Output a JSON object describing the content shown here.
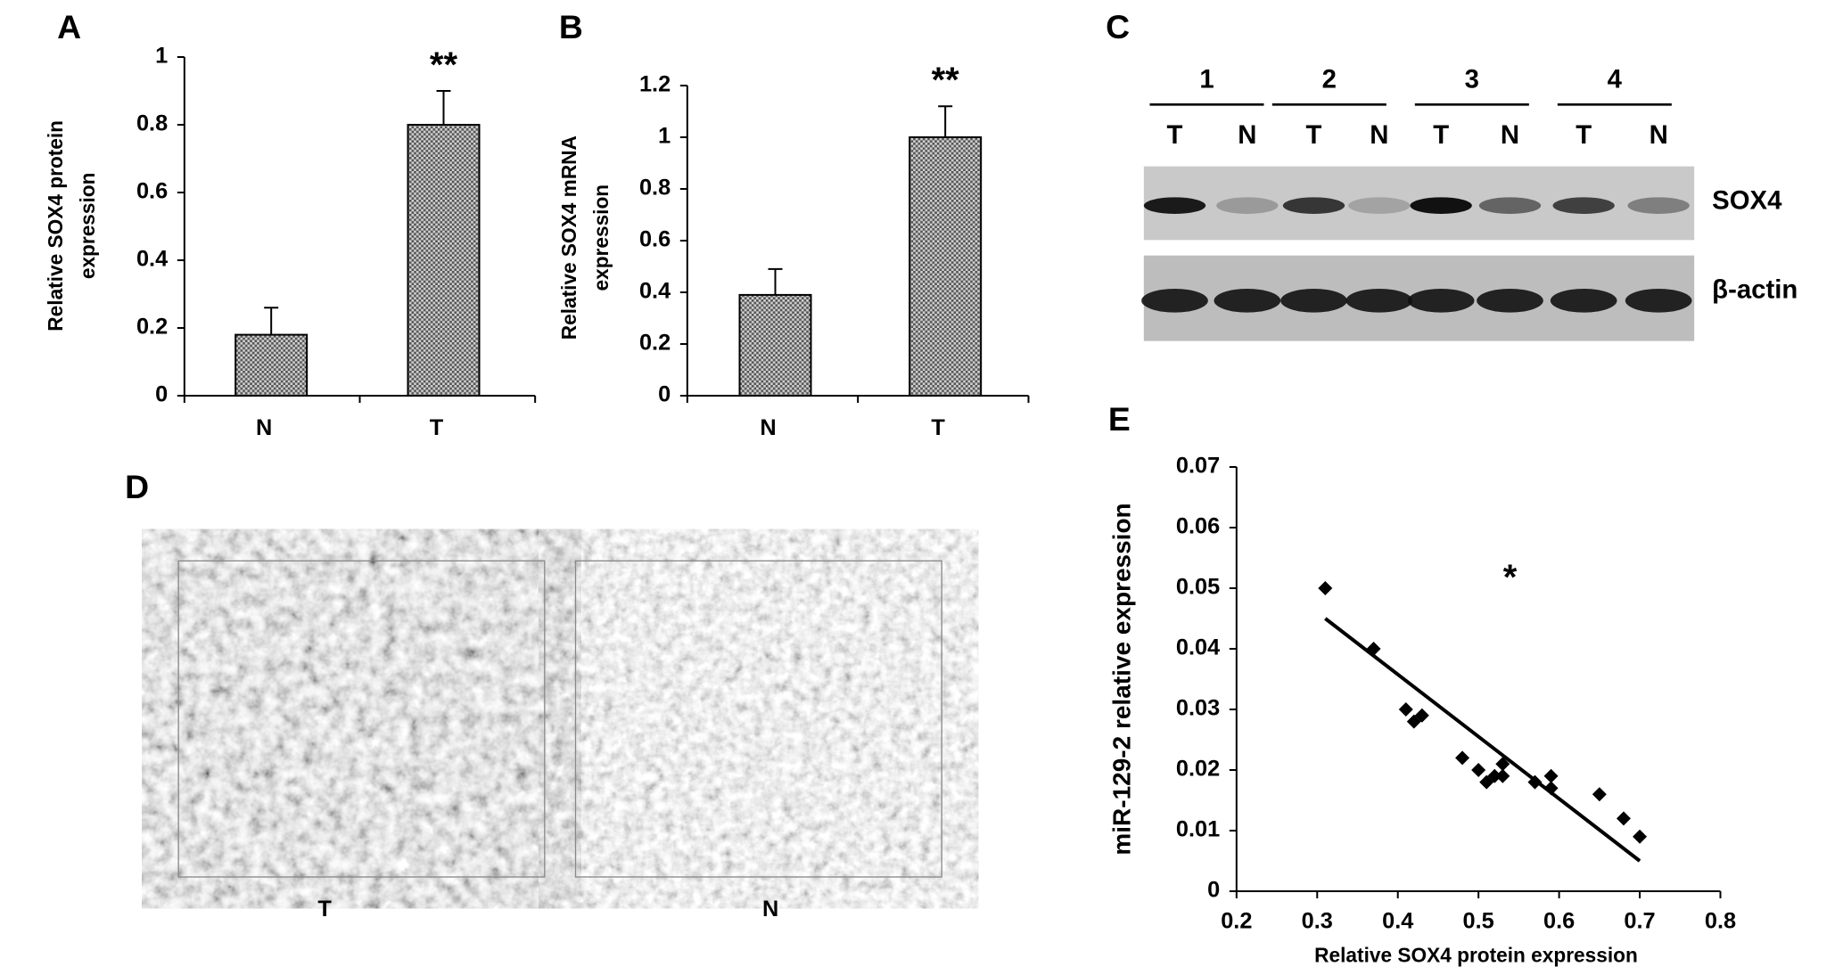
{
  "chart_data": [
    {
      "type": "bar",
      "panel": "A",
      "ylabel": [
        "Relative SOX4 protein",
        "expression"
      ],
      "categories": [
        "N",
        "T"
      ],
      "values": [
        0.18,
        0.8
      ],
      "errors": [
        0.08,
        0.1
      ],
      "annotations": [
        null,
        "**"
      ],
      "color": "#9a9a9a",
      "ylim": [
        0,
        1
      ],
      "yticks": [
        0,
        0.2,
        0.4,
        0.6,
        0.8,
        1
      ]
    },
    {
      "type": "bar",
      "panel": "B",
      "ylabel": [
        "Relative SOX4 mRNA",
        "expression"
      ],
      "categories": [
        "N",
        "T"
      ],
      "values": [
        0.39,
        1.0
      ],
      "errors": [
        0.1,
        0.12
      ],
      "annotations": [
        null,
        "**"
      ],
      "color": "#9a9a9a",
      "ylim": [
        0,
        1.2
      ],
      "yticks": [
        0,
        0.2,
        0.4,
        0.6,
        0.8,
        1,
        1.2
      ]
    },
    {
      "type": "scatter",
      "panel": "E",
      "xlabel": "Relative SOX4 protein expression",
      "ylabel": "miR-129-2 relative expression",
      "x": [
        0.31,
        0.37,
        0.41,
        0.42,
        0.43,
        0.48,
        0.5,
        0.51,
        0.52,
        0.53,
        0.53,
        0.57,
        0.59,
        0.59,
        0.65,
        0.68,
        0.7
      ],
      "values": [
        0.05,
        0.04,
        0.03,
        0.028,
        0.029,
        0.022,
        0.02,
        0.018,
        0.019,
        0.021,
        0.019,
        0.018,
        0.019,
        0.017,
        0.016,
        0.012,
        0.009
      ],
      "trendline": {
        "x": [
          0.31,
          0.7
        ],
        "y": [
          0.045,
          0.005
        ]
      },
      "annotation": "*",
      "color": "#000000",
      "xlim": [
        0.2,
        0.8
      ],
      "xticks": [
        0.2,
        0.3,
        0.4,
        0.5,
        0.6,
        0.7,
        0.8
      ],
      "ylim": [
        0,
        0.07
      ],
      "yticks": [
        0,
        0.01,
        0.02,
        0.03,
        0.04,
        0.05,
        0.06,
        0.07
      ]
    }
  ],
  "blot": {
    "panel": "C",
    "groups": [
      "1",
      "2",
      "3",
      "4"
    ],
    "lanes": [
      "T",
      "N",
      "T",
      "N",
      "T",
      "N",
      "T",
      "N"
    ],
    "proteins": [
      "SOX4",
      "β-actin"
    ]
  },
  "histology": {
    "panel": "D",
    "labels": [
      "T",
      "N"
    ]
  }
}
